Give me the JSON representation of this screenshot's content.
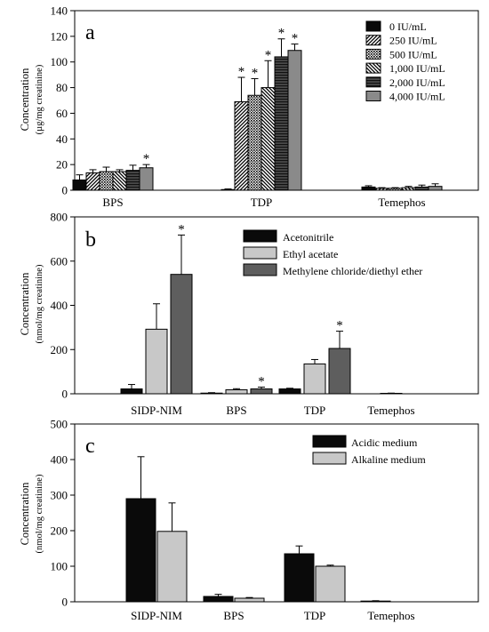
{
  "chart_data": [
    {
      "type": "bar",
      "panel_label": "a",
      "ylabel": "Concentration",
      "ylabel_unit": "(µg/mg creatinine)",
      "ylim": [
        0,
        140
      ],
      "yticks": [
        0,
        20,
        40,
        60,
        80,
        100,
        120,
        140
      ],
      "categories": [
        "BPS",
        "TDP",
        "Temephos"
      ],
      "legend_position": "top-right",
      "series": [
        {
          "name": "0 IU/mL",
          "fill": "black",
          "values": [
            8,
            0.5,
            2.5
          ],
          "errors": [
            4,
            0.5,
            1
          ],
          "significant": [
            false,
            false,
            false
          ]
        },
        {
          "name": "250 IU/mL",
          "fill": "hatch-right",
          "values": [
            13.5,
            69,
            1.5
          ],
          "errors": [
            2.5,
            19,
            0.5
          ],
          "significant": [
            false,
            true,
            false
          ]
        },
        {
          "name": "500 IU/mL",
          "fill": "dots",
          "values": [
            14.5,
            74,
            1.5
          ],
          "errors": [
            3.5,
            13,
            0.5
          ],
          "significant": [
            false,
            true,
            false
          ]
        },
        {
          "name": "1,000 IU/mL",
          "fill": "hatch-left",
          "values": [
            14.5,
            80,
            2
          ],
          "errors": [
            1.5,
            21,
            1
          ],
          "significant": [
            false,
            true,
            false
          ]
        },
        {
          "name": "2,000 IU/mL",
          "fill": "hlines",
          "values": [
            15.5,
            104,
            2.5
          ],
          "errors": [
            4,
            14,
            1.5
          ],
          "significant": [
            false,
            true,
            false
          ]
        },
        {
          "name": "4,000 IU/mL",
          "fill": "gray",
          "values": [
            17.5,
            109,
            3
          ],
          "errors": [
            2.5,
            5,
            2
          ],
          "significant": [
            true,
            true,
            false
          ]
        }
      ]
    },
    {
      "type": "bar",
      "panel_label": "b",
      "ylabel": "Concentration",
      "ylabel_unit": "(nmol/mg creatinine)",
      "ylim": [
        0,
        800
      ],
      "yticks": [
        0,
        200,
        400,
        600,
        800
      ],
      "categories": [
        "SIDP-NIM",
        "BPS",
        "TDP",
        "Temephos"
      ],
      "legend_position": "top-right",
      "series": [
        {
          "name": "Acetonitrile",
          "fill": "black",
          "values": [
            22,
            3,
            22,
            0
          ],
          "errors": [
            20,
            2,
            3,
            0
          ],
          "significant": [
            false,
            false,
            false,
            false
          ]
        },
        {
          "name": "Ethyl acetate",
          "fill": "lightgray",
          "values": [
            292,
            18,
            135,
            2
          ],
          "errors": [
            115,
            5,
            20,
            1
          ],
          "significant": [
            false,
            false,
            false,
            false
          ]
        },
        {
          "name": "Methylene chloride/diethyl ether",
          "fill": "darkgray",
          "values": [
            540,
            22,
            205,
            0
          ],
          "errors": [
            178,
            8,
            78,
            0
          ],
          "significant": [
            true,
            true,
            true,
            false
          ]
        }
      ]
    },
    {
      "type": "bar",
      "panel_label": "c",
      "ylabel": "Concentration",
      "ylabel_unit": "(nmol/mg creatinine)",
      "ylim": [
        0,
        500
      ],
      "yticks": [
        0,
        100,
        200,
        300,
        400,
        500
      ],
      "categories": [
        "SIDP-NIM",
        "BPS",
        "TDP",
        "Temephos"
      ],
      "legend_position": "top-right",
      "series": [
        {
          "name": "Acidic medium",
          "fill": "black",
          "values": [
            290,
            15,
            135,
            2
          ],
          "errors": [
            118,
            6,
            22,
            1
          ],
          "significant": [
            false,
            false,
            false,
            false
          ]
        },
        {
          "name": "Alkaline medium",
          "fill": "lightgray",
          "values": [
            198,
            10,
            100,
            0
          ],
          "errors": [
            80,
            2,
            3,
            0
          ],
          "significant": [
            false,
            false,
            false,
            false
          ]
        }
      ]
    }
  ],
  "significance_symbol": "*",
  "colors": {
    "black": "#0a0a0a",
    "gray": "#8a8a8a",
    "lightgray": "#c8c8c8",
    "darkgray": "#5e5e5e"
  }
}
